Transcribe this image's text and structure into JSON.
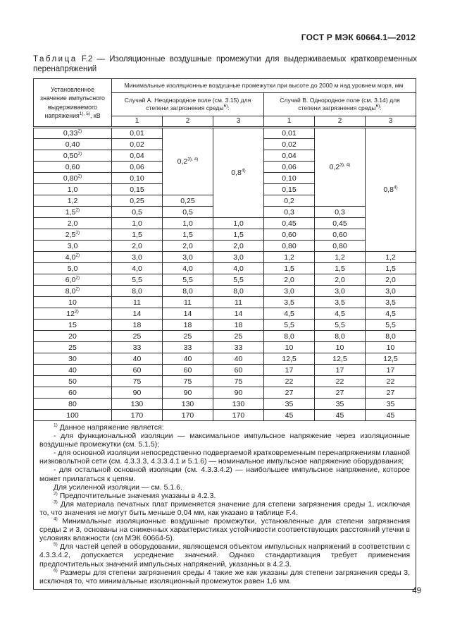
{
  "page": {
    "header": "ГОСТ Р МЭК 60664.1—2012",
    "number": "49"
  },
  "caption": {
    "label": "Таблица",
    "number": "F.2",
    "dash": "—",
    "text": "Изоляционные воздушные промежутки для выдерживаемых кратковременных перенапряжений"
  },
  "table": {
    "voltage_header": {
      "text": "Установленное значение импульсного выдерживаемого напряжения",
      "sup": "1), 5)",
      "unit": ", кВ"
    },
    "main_header": "Минимальные изоляционные воздушные промежутки при высоте до 2000 м над уровнем моря, мм",
    "case_a": {
      "text": "Случай А. Неоднородное поле (см. 3.15) для степени загрязнения среды",
      "sup": "6)",
      "colon": ":"
    },
    "case_b": {
      "text": "Случай В. Однородное поле (см. 3.14) для степени загрязнения среды",
      "sup": "6)",
      "colon": ":"
    },
    "degree_cols": [
      "1",
      "2",
      "3",
      "1",
      "2",
      "3"
    ],
    "rows": [
      [
        {
          "t": "0,33",
          "sup": "2)"
        },
        {
          "t": "0,01"
        },
        {
          "t": "0,2",
          "sup": "3), 4)",
          "rowspan": 6
        },
        {
          "t": "0,8",
          "sup": "4)",
          "rowspan": 8
        },
        {
          "t": "0,01"
        },
        {
          "t": "0,2",
          "sup": "3), 4)",
          "rowspan": 7
        },
        {
          "t": "0,8",
          "sup": "4)",
          "rowspan": 11
        }
      ],
      [
        {
          "t": "0,40"
        },
        {
          "t": "0,02"
        },
        {
          "t": "0,02"
        }
      ],
      [
        {
          "t": "0,50",
          "sup": "2)"
        },
        {
          "t": "0,04"
        },
        {
          "t": "0,04"
        }
      ],
      [
        {
          "t": "0,60"
        },
        {
          "t": "0,06"
        },
        {
          "t": "0,06"
        }
      ],
      [
        {
          "t": "0,80",
          "sup": "2)"
        },
        {
          "t": "0,10"
        },
        {
          "t": "0,10"
        }
      ],
      [
        {
          "t": "1,0"
        },
        {
          "t": "0,15"
        },
        {
          "t": "0,15"
        }
      ],
      [
        {
          "t": "1,2"
        },
        {
          "t": "0,25"
        },
        {
          "t": "0,25"
        },
        {
          "t": "0,2"
        }
      ],
      [
        {
          "t": "1,5",
          "sup": "2)"
        },
        {
          "t": "0,5"
        },
        {
          "t": "0,5"
        },
        {
          "t": "0,3"
        },
        {
          "t": "0,3"
        }
      ],
      [
        {
          "t": "2,0"
        },
        {
          "t": "1,0"
        },
        {
          "t": "1,0"
        },
        {
          "t": "1,0"
        },
        {
          "t": "0,45"
        },
        {
          "t": "0,45"
        }
      ],
      [
        {
          "t": "2,5",
          "sup": "2)"
        },
        {
          "t": "1,5"
        },
        {
          "t": "1,5"
        },
        {
          "t": "1,5"
        },
        {
          "t": "0,60"
        },
        {
          "t": "0,60"
        }
      ],
      [
        {
          "t": "3,0"
        },
        {
          "t": "2,0"
        },
        {
          "t": "2,0"
        },
        {
          "t": "2,0"
        },
        {
          "t": "0,80"
        },
        {
          "t": "0,80"
        }
      ],
      [
        {
          "t": "4,0",
          "sup": "2)"
        },
        {
          "t": "3,0"
        },
        {
          "t": "3,0"
        },
        {
          "t": "3,0"
        },
        {
          "t": "1,2"
        },
        {
          "t": "1,2"
        },
        {
          "t": "1,2"
        }
      ],
      [
        {
          "t": "5,0"
        },
        {
          "t": "4,0"
        },
        {
          "t": "4,0"
        },
        {
          "t": "4,0"
        },
        {
          "t": "1,5"
        },
        {
          "t": "1,5"
        },
        {
          "t": "1,5"
        }
      ],
      [
        {
          "t": "6,0",
          "sup": "2)"
        },
        {
          "t": "5,5"
        },
        {
          "t": "5,5"
        },
        {
          "t": "5,5"
        },
        {
          "t": "2,0"
        },
        {
          "t": "2,0"
        },
        {
          "t": "2,0"
        }
      ],
      [
        {
          "t": "8,0",
          "sup": "2)"
        },
        {
          "t": "8,0"
        },
        {
          "t": "8,0"
        },
        {
          "t": "8,0"
        },
        {
          "t": "3,0"
        },
        {
          "t": "3,0"
        },
        {
          "t": "3,0"
        }
      ],
      [
        {
          "t": "10"
        },
        {
          "t": "11"
        },
        {
          "t": "11"
        },
        {
          "t": "11"
        },
        {
          "t": "3,5"
        },
        {
          "t": "3,5"
        },
        {
          "t": "3,5"
        }
      ],
      [
        {
          "t": "12",
          "sup": "2)"
        },
        {
          "t": "14"
        },
        {
          "t": "14"
        },
        {
          "t": "14"
        },
        {
          "t": "4,5"
        },
        {
          "t": "4,5"
        },
        {
          "t": "4,5"
        }
      ],
      [
        {
          "t": "15"
        },
        {
          "t": "18"
        },
        {
          "t": "18"
        },
        {
          "t": "18"
        },
        {
          "t": "5,5"
        },
        {
          "t": "5,5"
        },
        {
          "t": "5,5"
        }
      ],
      [
        {
          "t": "20"
        },
        {
          "t": "25"
        },
        {
          "t": "25"
        },
        {
          "t": "25"
        },
        {
          "t": "8,0"
        },
        {
          "t": "8,0"
        },
        {
          "t": "8,0"
        }
      ],
      [
        {
          "t": "25"
        },
        {
          "t": "33"
        },
        {
          "t": "33"
        },
        {
          "t": "33"
        },
        {
          "t": "10"
        },
        {
          "t": "10"
        },
        {
          "t": "10"
        }
      ],
      [
        {
          "t": "30"
        },
        {
          "t": "40"
        },
        {
          "t": "40"
        },
        {
          "t": "40"
        },
        {
          "t": "12,5"
        },
        {
          "t": "12,5"
        },
        {
          "t": "12,5"
        }
      ],
      [
        {
          "t": "40"
        },
        {
          "t": "60"
        },
        {
          "t": "60"
        },
        {
          "t": "60"
        },
        {
          "t": "17"
        },
        {
          "t": "17"
        },
        {
          "t": "17"
        }
      ],
      [
        {
          "t": "50"
        },
        {
          "t": "75"
        },
        {
          "t": "75"
        },
        {
          "t": "75"
        },
        {
          "t": "22"
        },
        {
          "t": "22"
        },
        {
          "t": "22"
        }
      ],
      [
        {
          "t": "60"
        },
        {
          "t": "90"
        },
        {
          "t": "90"
        },
        {
          "t": "90"
        },
        {
          "t": "27"
        },
        {
          "t": "27"
        },
        {
          "t": "27"
        }
      ],
      [
        {
          "t": "80"
        },
        {
          "t": "130"
        },
        {
          "t": "130"
        },
        {
          "t": "130"
        },
        {
          "t": "35"
        },
        {
          "t": "35"
        },
        {
          "t": "35"
        }
      ],
      [
        {
          "t": "100"
        },
        {
          "t": "170"
        },
        {
          "t": "170"
        },
        {
          "t": "170"
        },
        {
          "t": "45"
        },
        {
          "t": "45"
        },
        {
          "t": "45"
        }
      ]
    ]
  },
  "footnotes": [
    {
      "sup": "1)",
      "text": "Данное напряжение является:"
    },
    {
      "sup": "",
      "text": "- для функциональной изоляции — максимальное импульсное напряжение через изоляционные воздушные промежутки (см. 5.1.5);"
    },
    {
      "sup": "",
      "text": "- для основной изоляции непосредственно подвергаемой кратковременным перенапряжениям главной низковольтной сети (см. 4.3.3.3, 4.3.3.4.1 и 5.1.6) — номинальное импульсное напряжение оборудования;"
    },
    {
      "sup": "",
      "text": "- для остальной основной изоляции (см. 4.3.3.4.2) — наибольшее импульсное напряжение, которое может прилагаться к цепям."
    },
    {
      "sup": "",
      "text": "Для усиленной изоляции — см. 5.1.6."
    },
    {
      "sup": "2)",
      "text": "Предпочтительные значения указаны в 4.2.3."
    },
    {
      "sup": "3)",
      "text": "Для материала печатных плат применяется значение для степени загрязнения среды 1, исключая то, что значения не могут быть меньше 0,04 мм, как указано в таблице F.4."
    },
    {
      "sup": "4)",
      "text": "Минимальные изоляционные воздушные промежутки, установленные для степени загрязнения среды 2 и 3, основаны на сниженных характеристиках устойчивости соответствующих расстояний утечки в условиях влажности (см МЭК 60664-5)."
    },
    {
      "sup": "5)",
      "text": "Для частей цепей в оборудовании, являющемся объектом импульсных напряжений в соответствии с 4.3.3.4.2, допускается усреднение значений. Однако стандартизация требует применения предпочтительных значений импульсных напряжений, указанных в 4.2.3."
    },
    {
      "sup": "6)",
      "text": "Размеры для степени загрязнения среды 4 такие же как указаны для степени загрязнения среды 3, исключая то, что минимальные изоляционный промежуток равен 1,6 мм."
    }
  ],
  "colors": {
    "text": "#1d1d1d",
    "border": "#2f2f2f",
    "background": "#ffffff"
  }
}
